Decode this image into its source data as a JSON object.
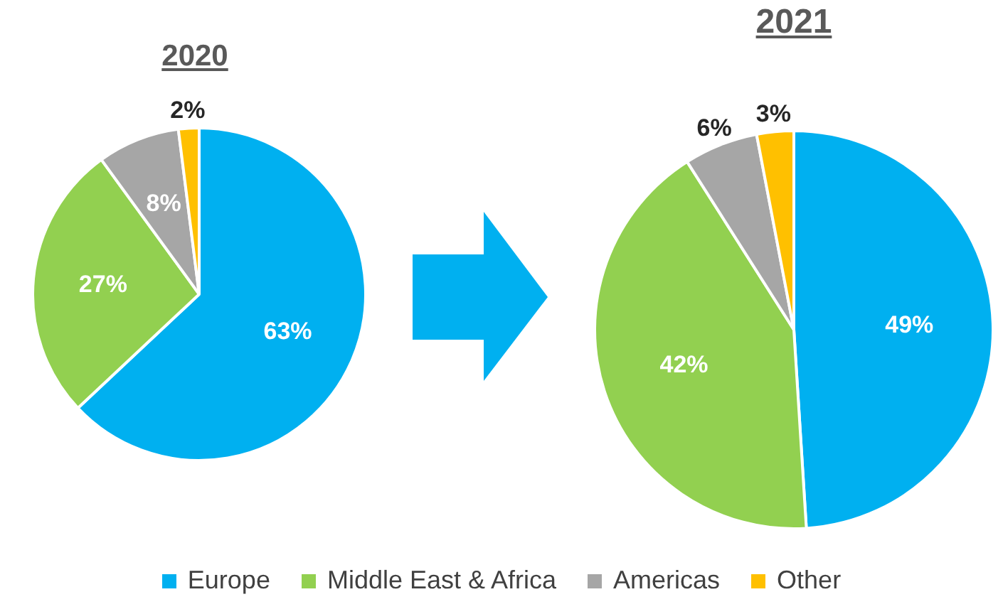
{
  "chart_data": {
    "type": "pie",
    "categories": [
      "Europe",
      "Middle East & Africa",
      "Americas",
      "Other"
    ],
    "colors": [
      "#00b0f0",
      "#92d050",
      "#a6a6a6",
      "#ffc000"
    ],
    "legend": "bottom",
    "series": [
      {
        "name": "2020",
        "values": [
          63,
          27,
          8,
          2
        ],
        "value_labels": [
          "63%",
          "27%",
          "8%",
          "2%"
        ]
      },
      {
        "name": "2021",
        "values": [
          49,
          42,
          6,
          3
        ],
        "value_labels": [
          "49%",
          "42%",
          "6%",
          "3%"
        ]
      }
    ]
  }
}
